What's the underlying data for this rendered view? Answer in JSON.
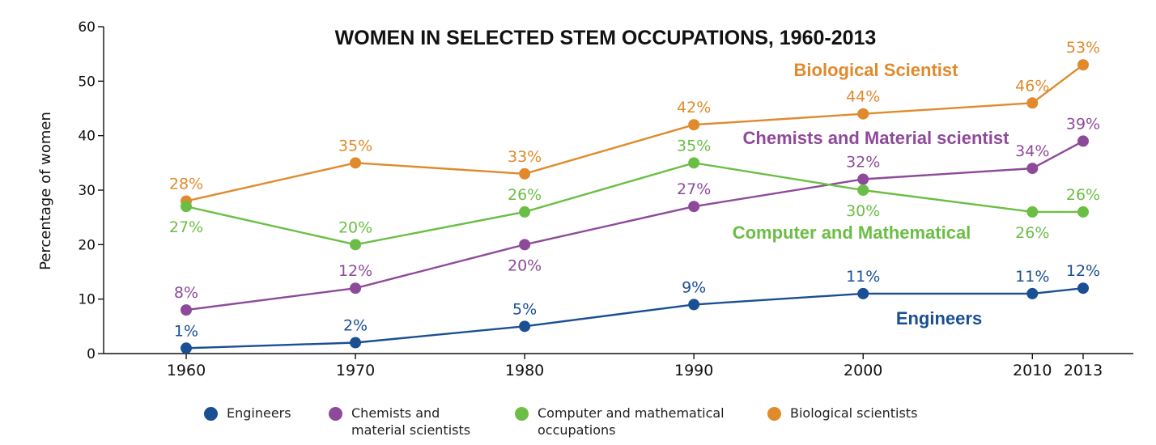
{
  "chart_data": {
    "type": "line",
    "title": "WOMEN IN SELECTED STEM OCCUPATIONS, 1960-2013",
    "ylabel": "Percentage of women",
    "xlabel": "",
    "ylim": [
      0,
      60
    ],
    "yticks": [
      "0",
      "10",
      "20",
      "30",
      "40",
      "50",
      "60"
    ],
    "xlim": [
      1955,
      2015
    ],
    "x": [
      1960,
      1970,
      1980,
      1990,
      2000,
      2010,
      2013
    ],
    "xtick_labels": [
      "1960",
      "1970",
      "1980",
      "1990",
      "2000",
      "2010",
      "2013"
    ],
    "grid": false,
    "series": [
      {
        "name": "Biological scientists",
        "inline_label": "Biological Scientist",
        "color": "#E08A2C",
        "values": [
          28,
          35,
          33,
          42,
          44,
          46,
          53
        ],
        "data_labels": [
          "28%",
          "35%",
          "33%",
          "42%",
          "44%",
          "46%",
          "53%"
        ]
      },
      {
        "name": "Chemists and material scientists",
        "inline_label": "Chemists and Material scientist",
        "color": "#8E4A9A",
        "values": [
          8,
          12,
          20,
          27,
          32,
          34,
          39
        ],
        "data_labels": [
          "8%",
          "12%",
          "20%",
          "27%",
          "32%",
          "34%",
          "39%"
        ]
      },
      {
        "name": "Computer and mathematical occupations",
        "inline_label": "Computer and Mathematical",
        "color": "#6BBE45",
        "values": [
          27,
          20,
          26,
          35,
          30,
          26,
          26
        ],
        "data_labels": [
          "27%",
          "20%",
          "26%",
          "35%",
          "30%",
          "26%",
          "26%"
        ]
      },
      {
        "name": "Engineers",
        "inline_label": "Engineers",
        "color": "#1A4F94",
        "values": [
          1,
          2,
          5,
          9,
          11,
          11,
          12
        ],
        "data_labels": [
          "1%",
          "2%",
          "5%",
          "9%",
          "11%",
          "11%",
          "12%"
        ]
      }
    ],
    "legend": {
      "placement": "bottom",
      "items": [
        {
          "label": "Engineers",
          "color": "#1A4F94"
        },
        {
          "label": "Chemists and\nmaterial scientists",
          "color": "#8E4A9A"
        },
        {
          "label": "Computer and mathematical\noccupations",
          "color": "#6BBE45"
        },
        {
          "label": "Biological scientists",
          "color": "#E08A2C"
        }
      ]
    }
  }
}
